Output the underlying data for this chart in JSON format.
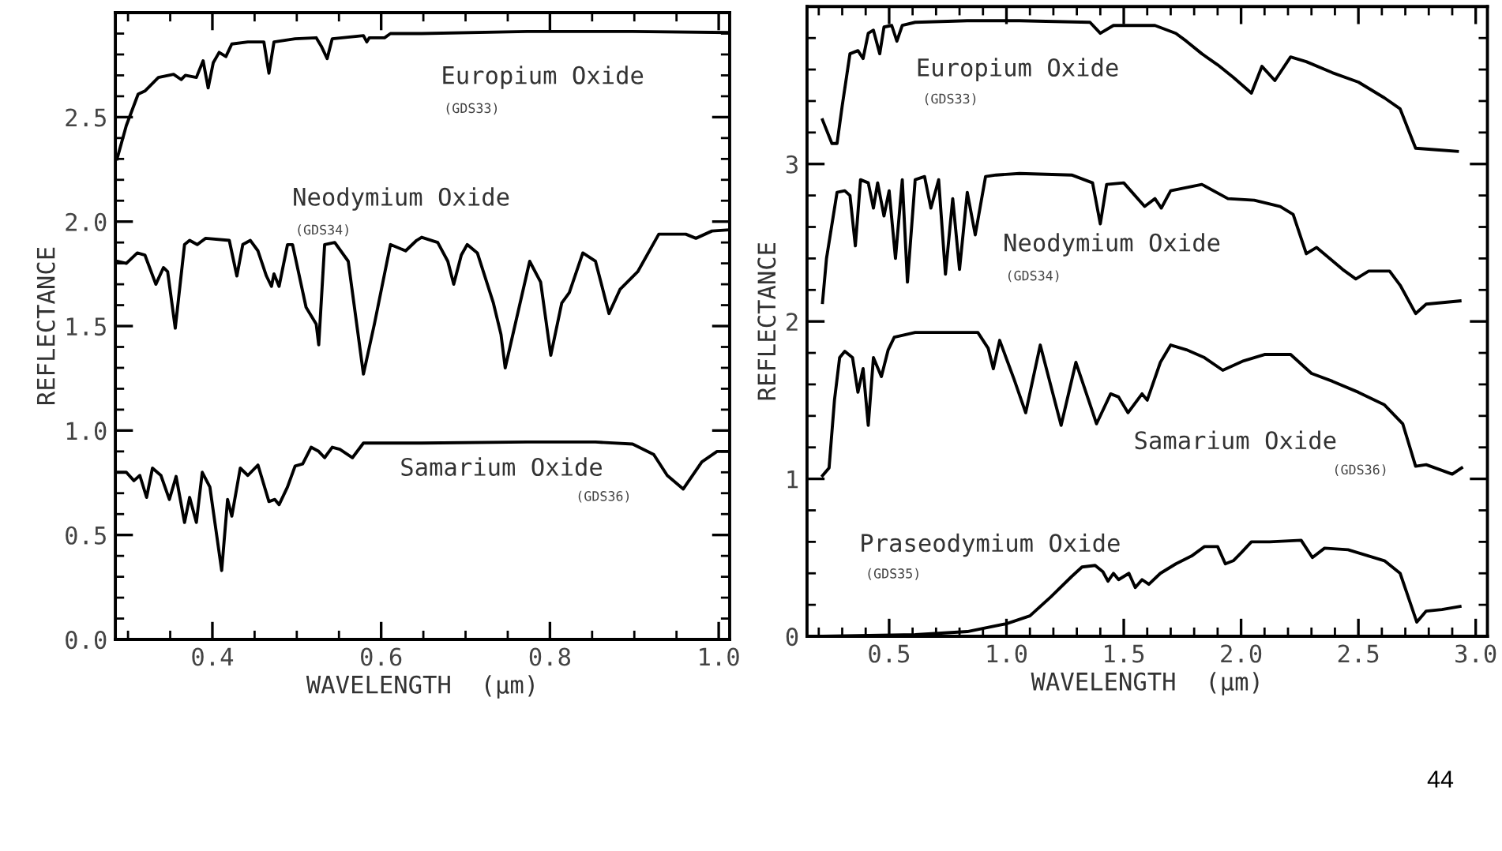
{
  "chart_data": [
    {
      "type": "line",
      "xlabel": "WAVELENGTH  (μm)",
      "ylabel": "REFLECTANCE",
      "xlim": [
        0.285,
        1.013
      ],
      "ylim": [
        0,
        3.0
      ],
      "xticks": [
        {
          "value": 0.3,
          "label": null
        },
        {
          "value": 0.35,
          "label": null
        },
        {
          "value": 0.4,
          "label": "0.4"
        },
        {
          "value": 0.45,
          "label": null
        },
        {
          "value": 0.5,
          "label": null
        },
        {
          "value": 0.55,
          "label": null
        },
        {
          "value": 0.6,
          "label": "0.6"
        },
        {
          "value": 0.65,
          "label": null
        },
        {
          "value": 0.7,
          "label": null
        },
        {
          "value": 0.75,
          "label": null
        },
        {
          "value": 0.8,
          "label": "0.8"
        },
        {
          "value": 0.85,
          "label": null
        },
        {
          "value": 0.9,
          "label": null
        },
        {
          "value": 0.95,
          "label": null
        },
        {
          "value": 1.0,
          "label": "1.0"
        }
      ],
      "yticks": [
        {
          "value": 0,
          "label": "0.0"
        },
        {
          "value": 0.1,
          "label": null
        },
        {
          "value": 0.2,
          "label": null
        },
        {
          "value": 0.3,
          "label": null
        },
        {
          "value": 0.4,
          "label": null
        },
        {
          "value": 0.5,
          "label": "0.5"
        },
        {
          "value": 0.6,
          "label": null
        },
        {
          "value": 0.7,
          "label": null
        },
        {
          "value": 0.8,
          "label": null
        },
        {
          "value": 0.9,
          "label": null
        },
        {
          "value": 1.0,
          "label": "1.0"
        },
        {
          "value": 1.1,
          "label": null
        },
        {
          "value": 1.2,
          "label": null
        },
        {
          "value": 1.3,
          "label": null
        },
        {
          "value": 1.4,
          "label": null
        },
        {
          "value": 1.5,
          "label": "1.5"
        },
        {
          "value": 1.6,
          "label": null
        },
        {
          "value": 1.7,
          "label": null
        },
        {
          "value": 1.8,
          "label": null
        },
        {
          "value": 1.9,
          "label": null
        },
        {
          "value": 2.0,
          "label": "2.0"
        },
        {
          "value": 2.1,
          "label": null
        },
        {
          "value": 2.2,
          "label": null
        },
        {
          "value": 2.3,
          "label": null
        },
        {
          "value": 2.4,
          "label": null
        },
        {
          "value": 2.5,
          "label": "2.5"
        },
        {
          "value": 2.6,
          "label": null
        },
        {
          "value": 2.7,
          "label": null
        },
        {
          "value": 2.8,
          "label": null
        },
        {
          "value": 2.9,
          "label": null
        }
      ],
      "grid": false,
      "legend": false,
      "marker": "none",
      "line_style": "solid",
      "annotations": [
        "(GDS33)",
        "(GDS34)",
        "(GDS36)"
      ],
      "series": [
        {
          "name": "Europium Oxide",
          "color": "#000000",
          "x": [
            0.287,
            0.298,
            0.312,
            0.32,
            0.336,
            0.354,
            0.363,
            0.368,
            0.381,
            0.389,
            0.395,
            0.401,
            0.408,
            0.416,
            0.423,
            0.442,
            0.461,
            0.467,
            0.473,
            0.498,
            0.523,
            0.529,
            0.536,
            0.542,
            0.579,
            0.583,
            0.586,
            0.604,
            0.611,
            0.648,
            0.773,
            0.898,
            1.011
          ],
          "values": [
            2.3,
            2.46,
            2.61,
            2.625,
            2.69,
            2.705,
            2.68,
            2.7,
            2.69,
            2.77,
            2.64,
            2.76,
            2.81,
            2.79,
            2.85,
            2.86,
            2.86,
            2.71,
            2.86,
            2.875,
            2.88,
            2.84,
            2.78,
            2.875,
            2.89,
            2.86,
            2.88,
            2.88,
            2.9,
            2.9,
            2.91,
            2.91,
            2.905
          ]
        },
        {
          "name": "Neodymium Oxide",
          "color": "#000000",
          "x": [
            0.287,
            0.298,
            0.311,
            0.32,
            0.333,
            0.342,
            0.347,
            0.356,
            0.367,
            0.373,
            0.382,
            0.392,
            0.42,
            0.429,
            0.436,
            0.445,
            0.454,
            0.464,
            0.47,
            0.473,
            0.479,
            0.489,
            0.495,
            0.511,
            0.523,
            0.526,
            0.533,
            0.545,
            0.561,
            0.579,
            0.592,
            0.611,
            0.629,
            0.642,
            0.648,
            0.667,
            0.679,
            0.686,
            0.695,
            0.702,
            0.714,
            0.733,
            0.742,
            0.747,
            0.776,
            0.789,
            0.801,
            0.814,
            0.823,
            0.839,
            0.854,
            0.87,
            0.883,
            0.904,
            0.929,
            0.961,
            0.973,
            0.992,
            1.011
          ],
          "values": [
            1.81,
            1.8,
            1.85,
            1.84,
            1.7,
            1.78,
            1.76,
            1.49,
            1.89,
            1.91,
            1.89,
            1.92,
            1.91,
            1.74,
            1.89,
            1.91,
            1.86,
            1.74,
            1.69,
            1.75,
            1.69,
            1.89,
            1.89,
            1.59,
            1.51,
            1.41,
            1.89,
            1.9,
            1.81,
            1.27,
            1.51,
            1.89,
            1.86,
            1.91,
            1.925,
            1.9,
            1.81,
            1.7,
            1.84,
            1.89,
            1.85,
            1.61,
            1.46,
            1.3,
            1.81,
            1.71,
            1.36,
            1.61,
            1.66,
            1.85,
            1.81,
            1.56,
            1.675,
            1.76,
            1.94,
            1.94,
            1.92,
            1.955,
            1.96
          ]
        },
        {
          "name": "Samarium Oxide",
          "color": "#000000",
          "x": [
            0.287,
            0.298,
            0.307,
            0.314,
            0.322,
            0.329,
            0.339,
            0.349,
            0.357,
            0.367,
            0.373,
            0.381,
            0.388,
            0.397,
            0.411,
            0.418,
            0.423,
            0.433,
            0.442,
            0.454,
            0.467,
            0.474,
            0.479,
            0.489,
            0.498,
            0.507,
            0.517,
            0.526,
            0.533,
            0.542,
            0.551,
            0.566,
            0.579,
            0.648,
            0.773,
            0.854,
            0.898,
            0.923,
            0.939,
            0.958,
            0.98,
            0.998,
            1.012
          ],
          "values": [
            0.8,
            0.8,
            0.76,
            0.785,
            0.68,
            0.82,
            0.785,
            0.67,
            0.78,
            0.56,
            0.68,
            0.56,
            0.8,
            0.73,
            0.33,
            0.67,
            0.59,
            0.82,
            0.785,
            0.835,
            0.66,
            0.67,
            0.645,
            0.73,
            0.83,
            0.84,
            0.92,
            0.9,
            0.87,
            0.92,
            0.91,
            0.87,
            0.94,
            0.94,
            0.945,
            0.945,
            0.935,
            0.885,
            0.785,
            0.72,
            0.85,
            0.9,
            0.9
          ]
        }
      ]
    },
    {
      "type": "line",
      "xlabel": "WAVELENGTH  (μm)",
      "ylabel": "REFLECTANCE",
      "xlim": [
        0.15,
        3.05
      ],
      "ylim": [
        0,
        4.0
      ],
      "xticks": [
        {
          "value": 0.2,
          "label": null
        },
        {
          "value": 0.3,
          "label": null
        },
        {
          "value": 0.4,
          "label": null
        },
        {
          "value": 0.5,
          "label": "0.5"
        },
        {
          "value": 0.6,
          "label": null
        },
        {
          "value": 0.7,
          "label": null
        },
        {
          "value": 0.8,
          "label": null
        },
        {
          "value": 0.9,
          "label": null
        },
        {
          "value": 1.0,
          "label": "1.0"
        },
        {
          "value": 1.1,
          "label": null
        },
        {
          "value": 1.2,
          "label": null
        },
        {
          "value": 1.3,
          "label": null
        },
        {
          "value": 1.4,
          "label": null
        },
        {
          "value": 1.5,
          "label": "1.5"
        },
        {
          "value": 1.6,
          "label": null
        },
        {
          "value": 1.7,
          "label": null
        },
        {
          "value": 1.8,
          "label": null
        },
        {
          "value": 1.9,
          "label": null
        },
        {
          "value": 2.0,
          "label": "2.0"
        },
        {
          "value": 2.1,
          "label": null
        },
        {
          "value": 2.2,
          "label": null
        },
        {
          "value": 2.3,
          "label": null
        },
        {
          "value": 2.4,
          "label": null
        },
        {
          "value": 2.5,
          "label": "2.5"
        },
        {
          "value": 2.6,
          "label": null
        },
        {
          "value": 2.7,
          "label": null
        },
        {
          "value": 2.8,
          "label": null
        },
        {
          "value": 2.9,
          "label": null
        },
        {
          "value": 3.0,
          "label": "3.0"
        }
      ],
      "yticks": [
        0,
        {
          "value": 0.2,
          "label": null
        },
        {
          "value": 0.4,
          "label": null
        },
        {
          "value": 0.6,
          "label": null
        },
        {
          "value": 0.8,
          "label": null
        },
        1,
        {
          "value": 1.2,
          "label": null
        },
        {
          "value": 1.4,
          "label": null
        },
        {
          "value": 1.6,
          "label": null
        },
        {
          "value": 1.8,
          "label": null
        },
        2,
        {
          "value": 2.2,
          "label": null
        },
        {
          "value": 2.4,
          "label": null
        },
        {
          "value": 2.6,
          "label": null
        },
        {
          "value": 2.8,
          "label": null
        },
        3,
        {
          "value": 3.2,
          "label": null
        },
        {
          "value": 3.4,
          "label": null
        },
        {
          "value": 3.6,
          "label": null
        },
        {
          "value": 3.8,
          "label": null
        }
      ],
      "grid": false,
      "legend": false,
      "marker": "none",
      "line_style": "solid",
      "annotations": [
        "(GDS33)",
        "(GDS34)",
        "(GDS36)",
        "(GDS35)",
        "44"
      ],
      "series": [
        {
          "name": "Europium Oxide",
          "color": "#000000",
          "x": [
            0.216,
            0.256,
            0.278,
            0.3,
            0.333,
            0.367,
            0.389,
            0.411,
            0.433,
            0.46,
            0.478,
            0.511,
            0.533,
            0.556,
            0.611,
            0.833,
            1.056,
            1.356,
            1.4,
            1.456,
            1.633,
            1.722,
            1.767,
            1.833,
            1.9,
            1.967,
            2.044,
            2.089,
            2.144,
            2.211,
            2.278,
            2.389,
            2.5,
            2.611,
            2.678,
            2.744,
            2.833,
            2.922
          ],
          "values": [
            3.28,
            3.13,
            3.13,
            3.37,
            3.7,
            3.72,
            3.67,
            3.83,
            3.85,
            3.7,
            3.87,
            3.88,
            3.78,
            3.88,
            3.9,
            3.91,
            3.91,
            3.9,
            3.83,
            3.88,
            3.88,
            3.83,
            3.78,
            3.7,
            3.63,
            3.55,
            3.45,
            3.62,
            3.53,
            3.68,
            3.65,
            3.58,
            3.52,
            3.42,
            3.35,
            3.1,
            3.09,
            3.08
          ]
        },
        {
          "name": "Neodymium Oxide",
          "color": "#000000",
          "x": [
            0.216,
            0.233,
            0.278,
            0.311,
            0.333,
            0.356,
            0.378,
            0.411,
            0.433,
            0.451,
            0.478,
            0.5,
            0.527,
            0.556,
            0.578,
            0.611,
            0.651,
            0.678,
            0.711,
            0.74,
            0.771,
            0.8,
            0.833,
            0.867,
            0.911,
            0.956,
            1.056,
            1.278,
            1.367,
            1.4,
            1.427,
            1.5,
            1.589,
            1.633,
            1.66,
            1.7,
            1.833,
            1.944,
            2.056,
            2.167,
            2.222,
            2.278,
            2.322,
            2.433,
            2.489,
            2.544,
            2.633,
            2.678,
            2.744,
            2.789,
            2.933
          ],
          "values": [
            2.12,
            2.4,
            2.82,
            2.83,
            2.8,
            2.48,
            2.9,
            2.88,
            2.72,
            2.88,
            2.67,
            2.83,
            2.4,
            2.9,
            2.25,
            2.9,
            2.92,
            2.72,
            2.9,
            2.3,
            2.78,
            2.33,
            2.82,
            2.55,
            2.92,
            2.93,
            2.94,
            2.93,
            2.88,
            2.62,
            2.87,
            2.88,
            2.73,
            2.78,
            2.72,
            2.83,
            2.87,
            2.78,
            2.77,
            2.73,
            2.68,
            2.43,
            2.47,
            2.33,
            2.27,
            2.32,
            2.32,
            2.23,
            2.05,
            2.11,
            2.13
          ]
        },
        {
          "name": "Samarium Oxide",
          "color": "#000000",
          "x": [
            0.216,
            0.244,
            0.267,
            0.289,
            0.311,
            0.344,
            0.367,
            0.389,
            0.411,
            0.433,
            0.467,
            0.496,
            0.522,
            0.611,
            0.878,
            0.922,
            0.944,
            0.971,
            1.033,
            1.082,
            1.144,
            1.233,
            1.296,
            1.384,
            1.444,
            1.478,
            1.518,
            1.578,
            1.6,
            1.656,
            1.7,
            1.767,
            1.844,
            1.922,
            2.011,
            2.1,
            2.211,
            2.3,
            2.389,
            2.5,
            2.611,
            2.689,
            2.744,
            2.789,
            2.9,
            2.94
          ],
          "values": [
            1.02,
            1.07,
            1.5,
            1.77,
            1.81,
            1.77,
            1.55,
            1.7,
            1.34,
            1.77,
            1.65,
            1.82,
            1.9,
            1.93,
            1.93,
            1.83,
            1.7,
            1.88,
            1.63,
            1.42,
            1.85,
            1.34,
            1.74,
            1.35,
            1.54,
            1.52,
            1.42,
            1.54,
            1.5,
            1.74,
            1.85,
            1.82,
            1.77,
            1.69,
            1.75,
            1.79,
            1.79,
            1.67,
            1.62,
            1.55,
            1.47,
            1.35,
            1.08,
            1.09,
            1.03,
            1.07
          ]
        },
        {
          "name": "Praseodymium Oxide",
          "color": "#000000",
          "x": [
            0.216,
            0.611,
            0.833,
            1.0,
            1.1,
            1.189,
            1.278,
            1.322,
            1.378,
            1.411,
            1.433,
            1.456,
            1.478,
            1.522,
            1.549,
            1.578,
            1.607,
            1.656,
            1.722,
            1.789,
            1.844,
            1.9,
            1.933,
            1.967,
            2.0,
            2.044,
            2.122,
            2.256,
            2.304,
            2.356,
            2.456,
            2.611,
            2.678,
            2.749,
            2.789,
            2.856,
            2.933
          ],
          "values": [
            0.0,
            0.01,
            0.03,
            0.08,
            0.13,
            0.25,
            0.38,
            0.44,
            0.45,
            0.41,
            0.35,
            0.4,
            0.36,
            0.4,
            0.31,
            0.36,
            0.33,
            0.4,
            0.46,
            0.51,
            0.57,
            0.57,
            0.46,
            0.48,
            0.53,
            0.6,
            0.6,
            0.61,
            0.5,
            0.56,
            0.55,
            0.48,
            0.4,
            0.09,
            0.16,
            0.17,
            0.19
          ]
        }
      ]
    }
  ]
}
